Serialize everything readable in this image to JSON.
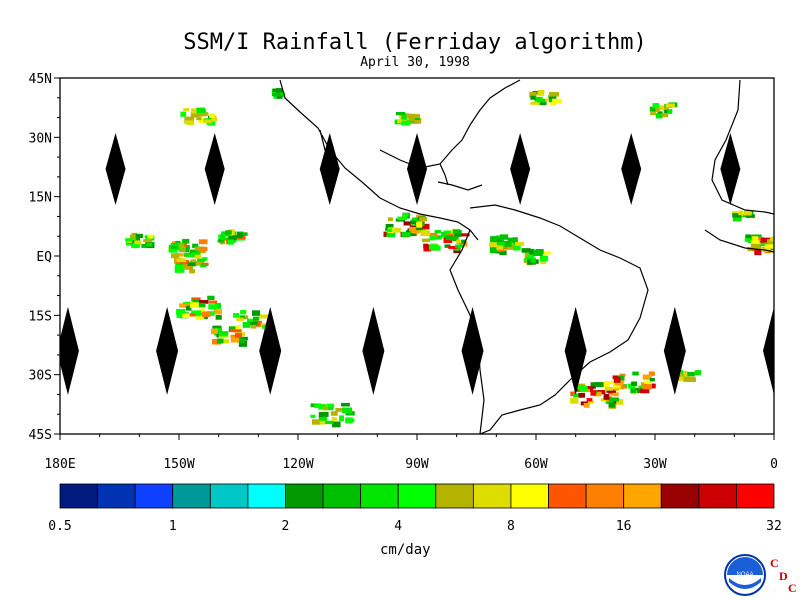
{
  "title": "SSM/I Rainfall (Ferriday algorithm)",
  "subtitle": "April 30, 1998",
  "map": {
    "lon_range": [
      -180,
      0
    ],
    "lat_range": [
      -45,
      45
    ],
    "lat_ticks": [
      {
        "value": 45,
        "label": "45N"
      },
      {
        "value": 30,
        "label": "30N"
      },
      {
        "value": 15,
        "label": "15N"
      },
      {
        "value": 0,
        "label": "EQ"
      },
      {
        "value": -15,
        "label": "15S"
      },
      {
        "value": -30,
        "label": "30S"
      },
      {
        "value": -45,
        "label": "45S"
      }
    ],
    "lon_ticks": [
      {
        "value": -180,
        "label": "180E"
      },
      {
        "value": -150,
        "label": "150W"
      },
      {
        "value": -120,
        "label": "120W"
      },
      {
        "value": -90,
        "label": "90W"
      },
      {
        "value": -60,
        "label": "60W"
      },
      {
        "value": -30,
        "label": "30W"
      },
      {
        "value": 0,
        "label": "0"
      }
    ],
    "gap_lons": [
      -166,
      -141,
      -112,
      -90,
      -64,
      -36,
      -11,
      -178,
      -153,
      -127,
      -101,
      -76,
      -50,
      -25,
      0
    ]
  },
  "colorbar": {
    "units": "cm/day",
    "colors": [
      "#001a80",
      "#0033b3",
      "#0d40ff",
      "#009999",
      "#00c8c8",
      "#00ffff",
      "#009900",
      "#00bf00",
      "#00e600",
      "#00ff00",
      "#b3b300",
      "#dddd00",
      "#ffff00",
      "#ff5500",
      "#ff8000",
      "#ffa500",
      "#990000",
      "#cc0000",
      "#ff0000"
    ],
    "tick_labels": [
      "0.5",
      "1",
      "2",
      "4",
      "8",
      "16",
      "32"
    ]
  },
  "logo": {
    "org": "NOAA",
    "letters": [
      "C",
      "D",
      "C"
    ]
  }
}
